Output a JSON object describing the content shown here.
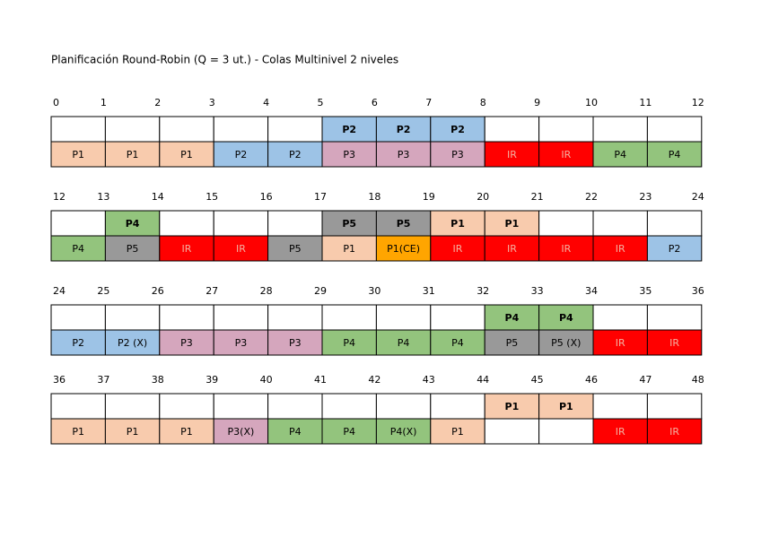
{
  "title": "Planificación Round-Robin (Q = 3 ut.) - Colas Multinivel 2 niveles",
  "blocks": [
    {
      "ticks": [
        0,
        1,
        2,
        3,
        4,
        5,
        6,
        7,
        8,
        9,
        10,
        11,
        12
      ],
      "top": [
        null,
        null,
        null,
        null,
        null,
        {
          "label": "P2",
          "color": "#9dc3e6"
        },
        {
          "label": "P2",
          "color": "#9dc3e6"
        },
        {
          "label": "P2",
          "color": "#9dc3e6"
        },
        null,
        null,
        null,
        null
      ],
      "bottom": [
        {
          "label": "P1",
          "color": "#f8cbad"
        },
        {
          "label": "P1",
          "color": "#f8cbad"
        },
        {
          "label": "P1",
          "color": "#f8cbad"
        },
        {
          "label": "P2",
          "color": "#9dc3e6"
        },
        {
          "label": "P2",
          "color": "#9dc3e6"
        },
        {
          "label": "P3",
          "color": "#d5a6bd"
        },
        {
          "label": "P3",
          "color": "#d5a6bd"
        },
        {
          "label": "P3",
          "color": "#d5a6bd"
        },
        {
          "label": "IR",
          "color": "#ff0000",
          "text_color": "#f4b0a0"
        },
        {
          "label": "IR",
          "color": "#ff0000",
          "text_color": "#f4b0a0"
        },
        {
          "label": "P4",
          "color": "#93c47d"
        },
        {
          "label": "P4",
          "color": "#93c47d"
        }
      ]
    },
    {
      "ticks": [
        12,
        13,
        14,
        15,
        16,
        17,
        18,
        19,
        20,
        21,
        22,
        23,
        24
      ],
      "top": [
        null,
        {
          "label": "P4",
          "color": "#93c47d"
        },
        null,
        null,
        null,
        {
          "label": "P5",
          "color": "#999999"
        },
        {
          "label": "P5",
          "color": "#999999"
        },
        {
          "label": "P1",
          "color": "#f8cbad"
        },
        {
          "label": "P1",
          "color": "#f8cbad"
        },
        null,
        null,
        null
      ],
      "bottom": [
        {
          "label": "P4",
          "color": "#93c47d"
        },
        {
          "label": "P5",
          "color": "#999999"
        },
        {
          "label": "IR",
          "color": "#ff0000",
          "text_color": "#f4b0a0"
        },
        {
          "label": "IR",
          "color": "#ff0000",
          "text_color": "#f4b0a0"
        },
        {
          "label": "P5",
          "color": "#999999"
        },
        {
          "label": "P1",
          "color": "#f8cbad"
        },
        {
          "label": "P1(CE)",
          "color": "#ffa500"
        },
        {
          "label": "IR",
          "color": "#ff0000",
          "text_color": "#f4b0a0"
        },
        {
          "label": "IR",
          "color": "#ff0000",
          "text_color": "#f4b0a0"
        },
        {
          "label": "IR",
          "color": "#ff0000",
          "text_color": "#f4b0a0"
        },
        {
          "label": "IR",
          "color": "#ff0000",
          "text_color": "#f4b0a0"
        },
        {
          "label": "P2",
          "color": "#9dc3e6"
        }
      ]
    },
    {
      "ticks": [
        24,
        25,
        26,
        27,
        28,
        29,
        30,
        31,
        32,
        33,
        34,
        35,
        36
      ],
      "top": [
        null,
        null,
        null,
        null,
        null,
        null,
        null,
        null,
        {
          "label": "P4",
          "color": "#93c47d"
        },
        {
          "label": "P4",
          "color": "#93c47d"
        },
        null,
        null
      ],
      "bottom": [
        {
          "label": "P2",
          "color": "#9dc3e6"
        },
        {
          "label": "P2 (X)",
          "color": "#9dc3e6"
        },
        {
          "label": "P3",
          "color": "#d5a6bd"
        },
        {
          "label": "P3",
          "color": "#d5a6bd"
        },
        {
          "label": "P3",
          "color": "#d5a6bd"
        },
        {
          "label": "P4",
          "color": "#93c47d"
        },
        {
          "label": "P4",
          "color": "#93c47d"
        },
        {
          "label": "P4",
          "color": "#93c47d"
        },
        {
          "label": "P5",
          "color": "#999999"
        },
        {
          "label": "P5 (X)",
          "color": "#999999"
        },
        {
          "label": "IR",
          "color": "#ff0000",
          "text_color": "#f4b0a0"
        },
        {
          "label": "IR",
          "color": "#ff0000",
          "text_color": "#f4b0a0"
        }
      ]
    },
    {
      "ticks": [
        36,
        37,
        38,
        39,
        40,
        41,
        42,
        43,
        44,
        45,
        46,
        47,
        48
      ],
      "top": [
        null,
        null,
        null,
        null,
        null,
        null,
        null,
        null,
        {
          "label": "P1",
          "color": "#f8cbad"
        },
        {
          "label": "P1",
          "color": "#f8cbad"
        },
        null,
        null
      ],
      "bottom": [
        {
          "label": "P1",
          "color": "#f8cbad"
        },
        {
          "label": "P1",
          "color": "#f8cbad"
        },
        {
          "label": "P1",
          "color": "#f8cbad"
        },
        {
          "label": "P3(X)",
          "color": "#d5a6bd"
        },
        {
          "label": "P4",
          "color": "#93c47d"
        },
        {
          "label": "P4",
          "color": "#93c47d"
        },
        {
          "label": "P4(X)",
          "color": "#93c47d"
        },
        {
          "label": "P1",
          "color": "#f8cbad"
        },
        null,
        null,
        {
          "label": "IR",
          "color": "#ff0000",
          "text_color": "#f4b0a0"
        },
        {
          "label": "IR",
          "color": "#ff0000",
          "text_color": "#f4b0a0"
        }
      ]
    }
  ]
}
